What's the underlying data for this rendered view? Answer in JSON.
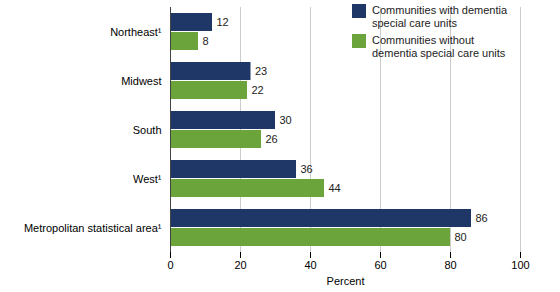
{
  "chart_data": {
    "type": "bar",
    "orientation": "horizontal",
    "categories": [
      "Northeast¹",
      "Midwest",
      "South",
      "West¹",
      "Metropolitan statistical area¹"
    ],
    "series": [
      {
        "name": "Communities with dementia special care units",
        "color": "#1f3766",
        "values": [
          12,
          23,
          30,
          36,
          86
        ]
      },
      {
        "name": "Communities without dementia special care units",
        "color": "#6ba43a",
        "values": [
          8,
          22,
          26,
          44,
          80
        ]
      }
    ],
    "xlabel": "Percent",
    "xlim": [
      0,
      100
    ],
    "xticks": [
      0,
      20,
      40,
      60,
      80,
      100
    ],
    "grid": true,
    "data_labels": true,
    "legend": "top right"
  }
}
